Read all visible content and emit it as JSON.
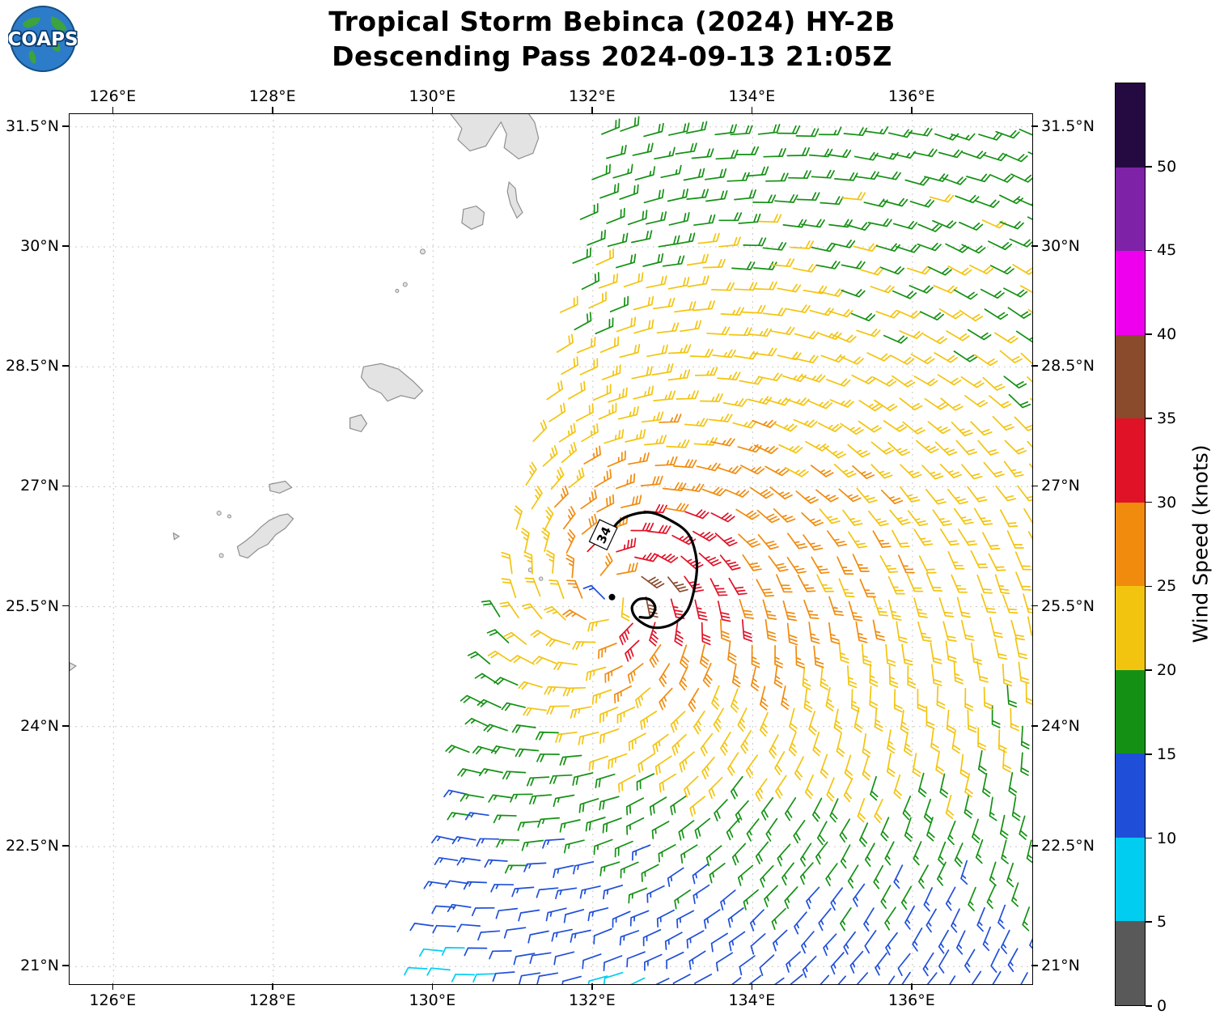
{
  "header": {
    "title_line1": "Tropical Storm Bebinca (2024) HY-2B",
    "title_line2": "Descending Pass 2024-09-13 21:05Z",
    "logo_text": "COAPS"
  },
  "axes": {
    "lon_min": 125.45,
    "lon_max": 137.5,
    "lat_min": 20.78,
    "lat_max": 31.66,
    "lon_ticks": [
      {
        "v": 126,
        "label": "126°E"
      },
      {
        "v": 128,
        "label": "128°E"
      },
      {
        "v": 130,
        "label": "130°E"
      },
      {
        "v": 132,
        "label": "132°E"
      },
      {
        "v": 134,
        "label": "134°E"
      },
      {
        "v": 136,
        "label": "136°E"
      }
    ],
    "lat_ticks": [
      {
        "v": 21,
        "label": "21°N"
      },
      {
        "v": 22.5,
        "label": "22.5°N"
      },
      {
        "v": 24,
        "label": "24°N"
      },
      {
        "v": 25.5,
        "label": "25.5°N"
      },
      {
        "v": 27,
        "label": "27°N"
      },
      {
        "v": 28.5,
        "label": "28.5°N"
      },
      {
        "v": 30,
        "label": "30°N"
      },
      {
        "v": 31.5,
        "label": "31.5°N"
      }
    ]
  },
  "colorbar": {
    "label": "Wind Speed (knots)",
    "tick_values": [
      0,
      5,
      10,
      15,
      20,
      25,
      30,
      35,
      40,
      45,
      50
    ],
    "bin_edges": [
      0,
      5,
      10,
      15,
      20,
      25,
      30,
      35,
      40,
      45,
      50
    ],
    "colors": [
      "#595959",
      "#00cdf0",
      "#1f4fd8",
      "#149114",
      "#f3c40f",
      "#f08b0e",
      "#e01227",
      "#8a4a2c",
      "#ee00ee",
      "#7e22a8",
      "#250a42"
    ]
  },
  "chart_data": {
    "type": "wind_barb_map",
    "title": "Tropical Storm Bebinca (2024) HY-2B — Descending Pass 2024-09-13 21:05Z",
    "satellite": "HY-2B",
    "storm_name": "Bebinca",
    "storm_year": 2024,
    "pass_type": "Descending",
    "pass_time_utc": "2024-09-13 21:05Z",
    "units": "knots",
    "wind_speed_bins_kt": [
      [
        0,
        5
      ],
      [
        5,
        10
      ],
      [
        10,
        15
      ],
      [
        15,
        20
      ],
      [
        20,
        25
      ],
      [
        25,
        30
      ],
      [
        30,
        35
      ],
      [
        35,
        40
      ],
      [
        40,
        45
      ],
      [
        45,
        50
      ],
      [
        50,
        60
      ]
    ],
    "storm_center_lonlat": [
      132.24,
      25.62
    ],
    "contour_34kt": {
      "label": "34",
      "label_lonlat": [
        132.13,
        26.4
      ],
      "label_rotation_deg": -65,
      "points": [
        [
          132.18,
          26.38
        ],
        [
          132.37,
          26.6
        ],
        [
          132.69,
          26.68
        ],
        [
          132.97,
          26.58
        ],
        [
          133.2,
          26.4
        ],
        [
          133.3,
          26.07
        ],
        [
          133.27,
          25.73
        ],
        [
          133.18,
          25.45
        ],
        [
          132.99,
          25.28
        ],
        [
          132.75,
          25.24
        ],
        [
          132.55,
          25.35
        ],
        [
          132.49,
          25.49
        ],
        [
          132.57,
          25.59
        ],
        [
          132.71,
          25.59
        ],
        [
          132.78,
          25.49
        ],
        [
          132.72,
          25.37
        ],
        [
          132.59,
          25.37
        ]
      ]
    },
    "wind_field_model": {
      "center_lon": 132.25,
      "center_lat": 25.65,
      "vmax_kt": 32,
      "r_max_deg": 0.4,
      "inner_exp": 0.45,
      "decay_exp_inner": 0.18,
      "decay_exp_outer": 0.3,
      "r_knee_deg": 1.2,
      "asym_amp": 0.22,
      "asym_dir_deg": 70,
      "south_taper_lat": 23.5,
      "south_taper_rate": 0.13,
      "south_taper_floor": 0.55,
      "inflow_deg": 18,
      "grid_spacing_deg": 0.277,
      "swath_left_edge": {
        "lon_at_21N": 129.95,
        "dlon_dlat": 0.2067
      },
      "lon_max": 137.52,
      "lat_min": 20.88,
      "lat_max": 31.62
    },
    "islands": [
      {
        "name": "kyushu-south",
        "type": "poly",
        "pts": [
          [
            130.22,
            31.7
          ],
          [
            130.22,
            31.66
          ],
          [
            130.36,
            31.48
          ],
          [
            130.31,
            31.34
          ],
          [
            130.46,
            31.2
          ],
          [
            130.66,
            31.26
          ],
          [
            130.77,
            31.44
          ],
          [
            130.85,
            31.56
          ],
          [
            130.92,
            31.41
          ],
          [
            130.89,
            31.24
          ],
          [
            131.07,
            31.1
          ],
          [
            131.25,
            31.17
          ],
          [
            131.32,
            31.36
          ],
          [
            131.27,
            31.56
          ],
          [
            131.17,
            31.7
          ]
        ]
      },
      {
        "name": "tanegashima",
        "type": "poly",
        "pts": [
          [
            130.95,
            30.81
          ],
          [
            131.03,
            30.73
          ],
          [
            131.05,
            30.57
          ],
          [
            131.12,
            30.43
          ],
          [
            131.05,
            30.36
          ],
          [
            130.97,
            30.53
          ],
          [
            130.93,
            30.69
          ]
        ]
      },
      {
        "name": "yakushima",
        "type": "poly",
        "pts": [
          [
            130.38,
            30.47
          ],
          [
            130.54,
            30.51
          ],
          [
            130.64,
            30.43
          ],
          [
            130.62,
            30.28
          ],
          [
            130.48,
            30.22
          ],
          [
            130.36,
            30.3
          ]
        ]
      },
      {
        "name": "islet-1",
        "type": "dot",
        "c": [
          129.87,
          29.94
        ],
        "r": 3
      },
      {
        "name": "islet-2",
        "type": "dot",
        "c": [
          129.65,
          29.53
        ],
        "r": 2.5
      },
      {
        "name": "islet-3",
        "type": "dot",
        "c": [
          129.55,
          29.45
        ],
        "r": 2
      },
      {
        "name": "amami-oshima",
        "type": "poly",
        "pts": [
          [
            129.13,
            28.5
          ],
          [
            129.35,
            28.54
          ],
          [
            129.57,
            28.47
          ],
          [
            129.75,
            28.32
          ],
          [
            129.87,
            28.2
          ],
          [
            129.77,
            28.1
          ],
          [
            129.6,
            28.14
          ],
          [
            129.43,
            28.07
          ],
          [
            129.35,
            28.17
          ],
          [
            129.2,
            28.24
          ],
          [
            129.1,
            28.37
          ]
        ]
      },
      {
        "name": "tokunoshima",
        "type": "poly",
        "pts": [
          [
            128.96,
            27.86
          ],
          [
            129.1,
            27.9
          ],
          [
            129.17,
            27.79
          ],
          [
            129.1,
            27.69
          ],
          [
            128.96,
            27.73
          ]
        ]
      },
      {
        "name": "okinoerabu",
        "type": "poly",
        "pts": [
          [
            127.95,
            27.03
          ],
          [
            128.15,
            27.07
          ],
          [
            128.23,
            26.99
          ],
          [
            128.08,
            26.92
          ],
          [
            127.96,
            26.95
          ]
        ]
      },
      {
        "name": "islet-4",
        "type": "dot",
        "c": [
          127.32,
          26.67
        ],
        "r": 2.5
      },
      {
        "name": "islet-5",
        "type": "dot",
        "c": [
          127.45,
          26.63
        ],
        "r": 2
      },
      {
        "name": "okinawa",
        "type": "poly",
        "pts": [
          [
            128.25,
            26.6
          ],
          [
            128.15,
            26.48
          ],
          [
            128.03,
            26.4
          ],
          [
            127.93,
            26.28
          ],
          [
            127.81,
            26.22
          ],
          [
            127.68,
            26.11
          ],
          [
            127.58,
            26.14
          ],
          [
            127.55,
            26.25
          ],
          [
            127.65,
            26.32
          ],
          [
            127.75,
            26.4
          ],
          [
            127.85,
            26.5
          ],
          [
            127.95,
            26.58
          ],
          [
            128.08,
            26.64
          ],
          [
            128.18,
            26.66
          ]
        ]
      },
      {
        "name": "kerama",
        "type": "poly",
        "pts": [
          [
            126.75,
            26.42
          ],
          [
            126.82,
            26.38
          ],
          [
            126.76,
            26.34
          ]
        ]
      },
      {
        "name": "islet-6",
        "type": "dot",
        "c": [
          127.35,
          26.14
        ],
        "r": 2.5
      },
      {
        "name": "edge-fragment",
        "type": "poly",
        "pts": [
          [
            125.45,
            24.8
          ],
          [
            125.53,
            24.76
          ],
          [
            125.45,
            24.7
          ]
        ]
      },
      {
        "name": "kita-daito",
        "type": "dot",
        "c": [
          131.22,
          25.96
        ],
        "r": 2.5
      },
      {
        "name": "minami-daito",
        "type": "dot",
        "c": [
          131.35,
          25.85
        ],
        "r": 2.2
      }
    ]
  }
}
